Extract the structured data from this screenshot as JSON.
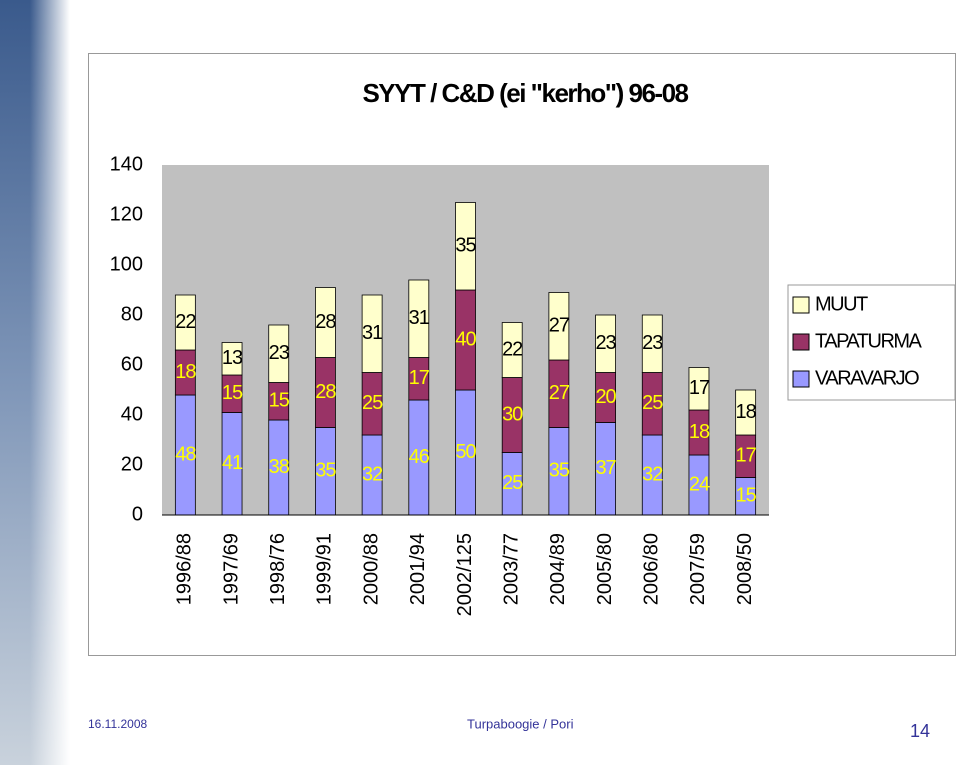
{
  "chart_data": {
    "type": "bar",
    "stacked": true,
    "title": "SYYT / C&D (ei \"kerho\")  96-08",
    "categories": [
      "1996/88",
      "1997/69",
      "1998/76",
      "1999/91",
      "2000/88",
      "2001/94",
      "2002/125",
      "2003/77",
      "2004/89",
      "2005/80",
      "2006/80",
      "2007/59",
      "2008/50"
    ],
    "series": [
      {
        "name": "VARAVARJO",
        "color": "#9999ff",
        "label_color": "#ffff00",
        "values": [
          48,
          41,
          38,
          35,
          32,
          46,
          50,
          25,
          35,
          37,
          32,
          24,
          15
        ]
      },
      {
        "name": "TAPATURMA",
        "color": "#993366",
        "label_color": "#ffff00",
        "values": [
          18,
          15,
          15,
          28,
          25,
          17,
          40,
          30,
          27,
          20,
          25,
          18,
          17
        ]
      },
      {
        "name": "MUUT",
        "color": "#ffffcc",
        "label_color": "#000000",
        "values": [
          22,
          13,
          23,
          28,
          31,
          31,
          35,
          22,
          27,
          23,
          23,
          17,
          18
        ]
      }
    ],
    "ylim": [
      0,
      140
    ],
    "yticks": [
      0,
      20,
      40,
      60,
      80,
      100,
      120,
      140
    ],
    "legend": "right"
  },
  "footer": {
    "date": "16.11.2008",
    "source": "Turpaboogie / Pori",
    "page": 14
  }
}
